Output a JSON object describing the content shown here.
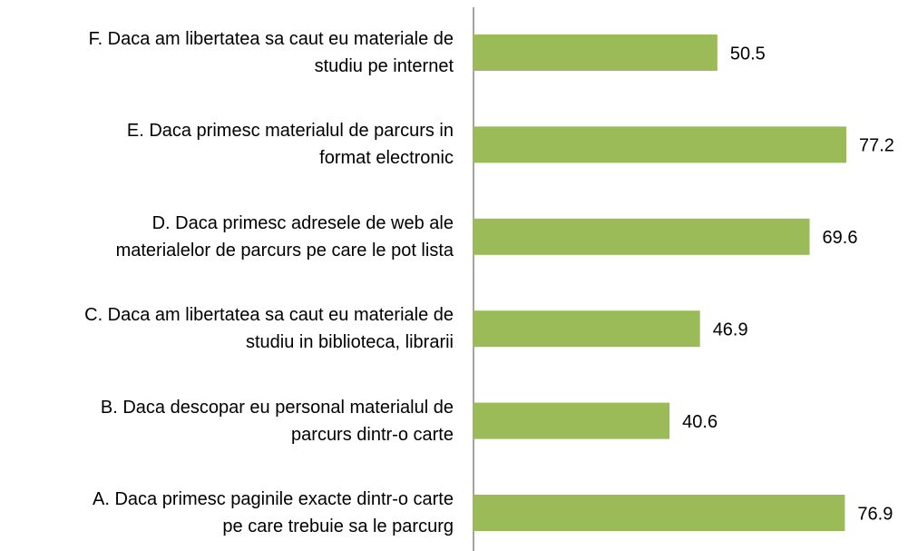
{
  "chart_data": {
    "type": "barh",
    "categories": [
      "F. Daca am libertatea sa caut eu materiale de\nstudiu pe internet",
      "E. Daca primesc materialul de parcurs in\nformat electronic",
      "D. Daca primesc adresele de web ale\nmaterialelor de parcurs pe care le pot lista",
      "C. Daca am libertatea sa caut eu materiale de\nstudiu in biblioteca, librarii",
      "B. Daca descopar eu personal materialul de\nparcurs dintr-o carte",
      "A. Daca primesc paginile exacte dintr-o carte\npe care trebuie sa le parcurg"
    ],
    "values": [
      50.5,
      77.2,
      69.6,
      46.9,
      40.6,
      76.9
    ],
    "color": "#9bbb59"
  }
}
